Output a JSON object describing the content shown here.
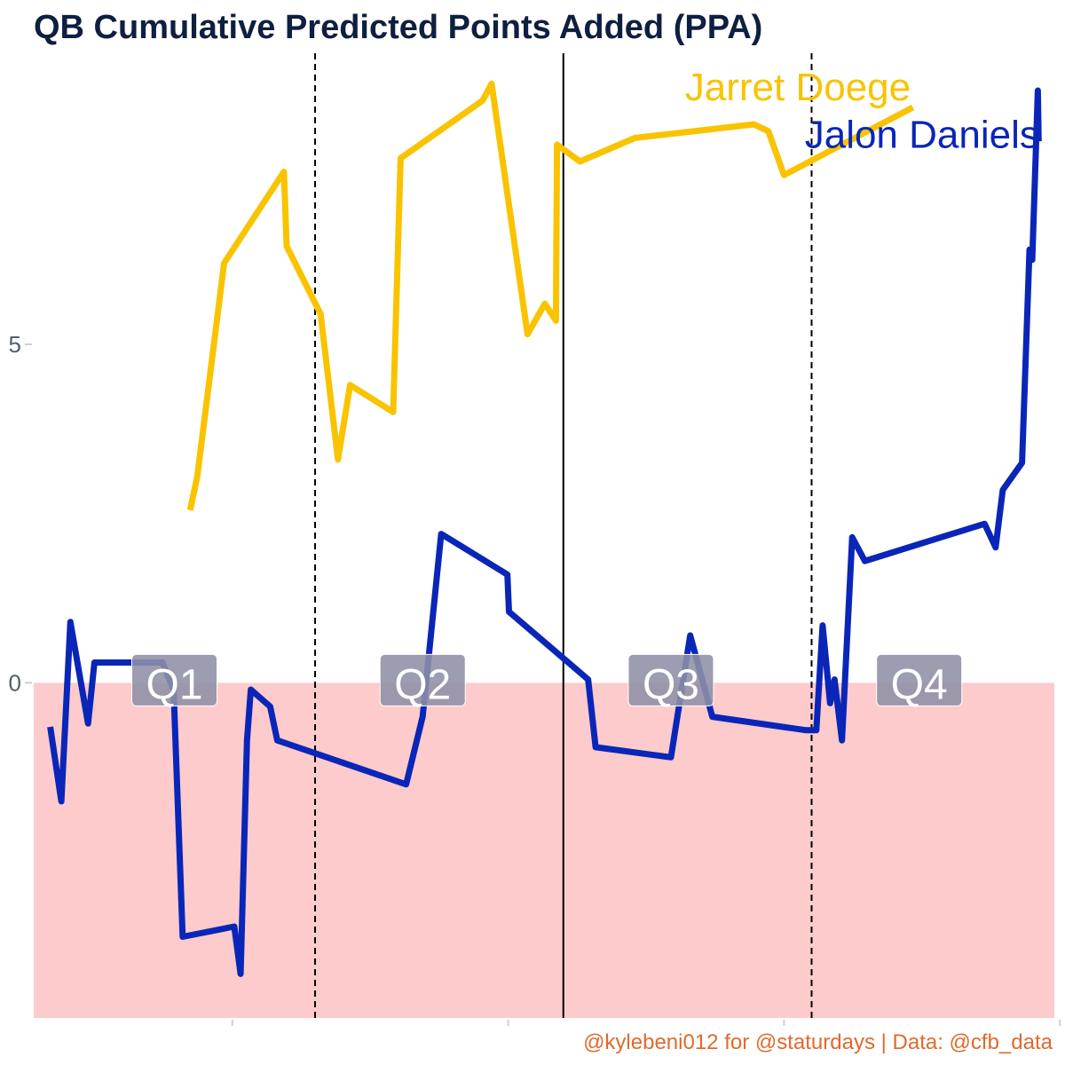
{
  "colors": {
    "title": "#0e1f40",
    "caption": "#e06a2c",
    "negative_band": "#fdcbcc",
    "quarter_box": "#8f8fa6",
    "tick_text": "#555e6b",
    "axis_tick": "#cfcfcf"
  },
  "chart_data": {
    "type": "line",
    "title": "QB Cumulative Predicted Points Added (PPA)",
    "caption": "@kylebeni012 for @staturdays | Data: @cfb_data",
    "xlabel": "",
    "ylabel": "",
    "xlim": [
      0,
      3700
    ],
    "ylim": [
      -4.95,
      9.3
    ],
    "y_ticks": [
      {
        "value": 0,
        "label": "0"
      },
      {
        "value": 5,
        "label": "5"
      }
    ],
    "x_ticks": [
      720,
      1720,
      2720,
      3720
    ],
    "negative_shading": {
      "from": -4.95,
      "to": 0
    },
    "quarter_dividers": [
      {
        "x": 1020,
        "style": "dashed"
      },
      {
        "x": 1920,
        "style": "solid"
      },
      {
        "x": 2820,
        "style": "dashed"
      }
    ],
    "quarters": [
      {
        "label": "Q1",
        "x": 510,
        "y": 0
      },
      {
        "label": "Q2",
        "x": 1410,
        "y": 0
      },
      {
        "label": "Q3",
        "x": 2310,
        "y": 0
      },
      {
        "label": "Q4",
        "x": 3210,
        "y": 0
      }
    ],
    "grid": false,
    "legend": "direct labels at top-right",
    "series": [
      {
        "name": "Jarret Doege",
        "color": "#f9c300",
        "label_position": {
          "x": 2770,
          "y": 8.8
        },
        "points": [
          [
            567,
            2.55
          ],
          [
            593,
            3.05
          ],
          [
            690,
            6.2
          ],
          [
            907,
            7.55
          ],
          [
            917,
            6.45
          ],
          [
            1040,
            5.45
          ],
          [
            1103,
            3.3
          ],
          [
            1147,
            4.4
          ],
          [
            1303,
            4.0
          ],
          [
            1330,
            7.75
          ],
          [
            1627,
            8.6
          ],
          [
            1660,
            8.85
          ],
          [
            1790,
            5.15
          ],
          [
            1853,
            5.6
          ],
          [
            1893,
            5.35
          ],
          [
            1897,
            7.95
          ],
          [
            1980,
            7.7
          ],
          [
            2180,
            8.05
          ],
          [
            2610,
            8.25
          ],
          [
            2663,
            8.15
          ],
          [
            2720,
            7.5
          ],
          [
            3187,
            8.5
          ]
        ]
      },
      {
        "name": "Jalon Daniels",
        "color": "#0a26b8",
        "label_position": {
          "x": 3220,
          "y": 8.1
        },
        "points": [
          [
            60,
            -0.65
          ],
          [
            100,
            -1.75
          ],
          [
            133,
            0.9
          ],
          [
            197,
            -0.6
          ],
          [
            220,
            0.3
          ],
          [
            467,
            0.3
          ],
          [
            507,
            -0.1
          ],
          [
            540,
            -3.75
          ],
          [
            727,
            -3.6
          ],
          [
            750,
            -4.3
          ],
          [
            773,
            -0.85
          ],
          [
            787,
            -0.1
          ],
          [
            857,
            -0.35
          ],
          [
            883,
            -0.85
          ],
          [
            1350,
            -1.5
          ],
          [
            1410,
            -0.5
          ],
          [
            1477,
            2.2
          ],
          [
            1717,
            1.6
          ],
          [
            1723,
            1.05
          ],
          [
            2010,
            0.05
          ],
          [
            2037,
            -0.95
          ],
          [
            2310,
            -1.1
          ],
          [
            2380,
            0.7
          ],
          [
            2460,
            -0.5
          ],
          [
            2800,
            -0.7
          ],
          [
            2837,
            -0.7
          ],
          [
            2860,
            0.85
          ],
          [
            2887,
            -0.3
          ],
          [
            2903,
            0.05
          ],
          [
            2930,
            -0.85
          ],
          [
            2967,
            2.15
          ],
          [
            3013,
            1.8
          ],
          [
            3447,
            2.35
          ],
          [
            3487,
            2.0
          ],
          [
            3513,
            2.85
          ],
          [
            3583,
            3.25
          ],
          [
            3610,
            6.4
          ],
          [
            3620,
            6.25
          ],
          [
            3640,
            8.75
          ],
          [
            3643,
            8.0
          ]
        ]
      }
    ]
  }
}
